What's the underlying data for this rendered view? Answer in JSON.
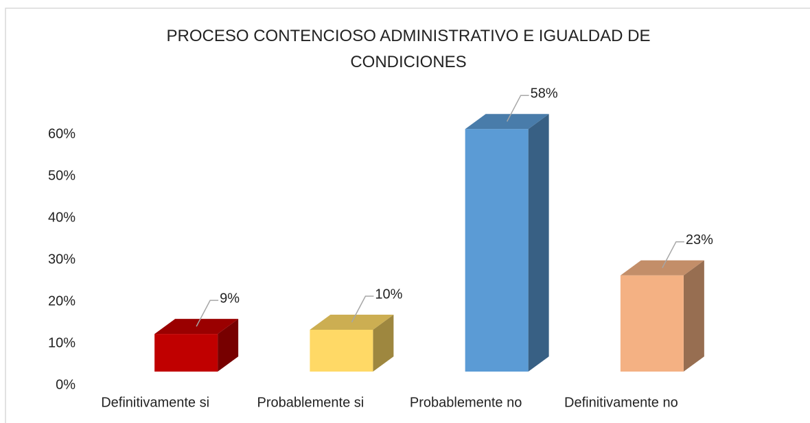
{
  "chart_data": {
    "type": "bar3d",
    "title": "PROCESO CONTENCIOSO ADMINISTRATIVO E IGUALDAD DE CONDICIONES",
    "categories": [
      "Definitivamente si",
      "Probablemente si",
      "Probablemente no",
      "Definitivamente no"
    ],
    "values": [
      9,
      10,
      58,
      23
    ],
    "value_labels": [
      "9%",
      "10%",
      "58%",
      "23%"
    ],
    "colors": [
      "#c00000",
      "#ffd966",
      "#5b9bd5",
      "#f4b183"
    ],
    "ylim": [
      0,
      60
    ],
    "yticks": [
      {
        "value": 0,
        "label": "0%"
      },
      {
        "value": 10,
        "label": "10%"
      },
      {
        "value": 20,
        "label": "20%"
      },
      {
        "value": 30,
        "label": "30%"
      },
      {
        "value": 40,
        "label": "40%"
      },
      {
        "value": 50,
        "label": "50%"
      },
      {
        "value": 60,
        "label": "60%"
      }
    ],
    "grid": false
  }
}
